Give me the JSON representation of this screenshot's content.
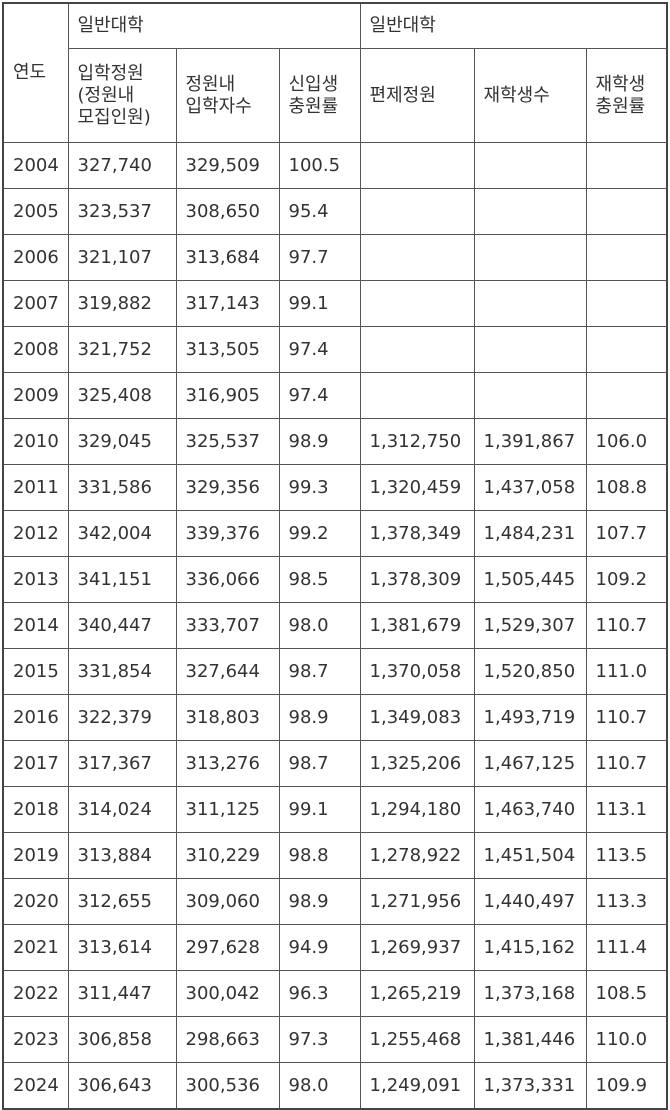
{
  "table": {
    "header": {
      "year": "연도",
      "group1": "일반대학",
      "group2": "일반대학",
      "columns": [
        "입학정원\n(정원내\n모집인원)",
        "정원내\n입학자수",
        "신입생\n충원률",
        "편제정원",
        "재학생수",
        "재학생\n충원률"
      ]
    },
    "rows": [
      [
        "2004",
        "327,740",
        "329,509",
        "100.5"
      ],
      [
        "2005",
        "323,537",
        "308,650",
        "95.4"
      ],
      [
        "2006",
        "321,107",
        "313,684",
        "97.7"
      ],
      [
        "2007",
        "319,882",
        "317,143",
        "99.1"
      ],
      [
        "2008",
        "321,752",
        "313,505",
        "97.4"
      ],
      [
        "2009",
        "325,408",
        "316,905",
        "97.4"
      ],
      [
        "2010",
        "329,045",
        "325,537",
        "98.9",
        "1,312,750",
        "1,391,867",
        "106.0"
      ],
      [
        "2011",
        "331,586",
        "329,356",
        "99.3",
        "1,320,459",
        "1,437,058",
        "108.8"
      ],
      [
        "2012",
        "342,004",
        "339,376",
        "99.2",
        "1,378,349",
        "1,484,231",
        "107.7"
      ],
      [
        "2013",
        "341,151",
        "336,066",
        "98.5",
        "1,378,309",
        "1,505,445",
        "109.2"
      ],
      [
        "2014",
        "340,447",
        "333,707",
        "98.0",
        "1,381,679",
        "1,529,307",
        "110.7"
      ],
      [
        "2015",
        "331,854",
        "327,644",
        "98.7",
        "1,370,058",
        "1,520,850",
        "111.0"
      ],
      [
        "2016",
        "322,379",
        "318,803",
        "98.9",
        "1,349,083",
        "1,493,719",
        "110.7"
      ],
      [
        "2017",
        "317,367",
        "313,276",
        "98.7",
        "1,325,206",
        "1,467,125",
        "110.7"
      ],
      [
        "2018",
        "314,024",
        "311,125",
        "99.1",
        "1,294,180",
        "1,463,740",
        "113.1"
      ],
      [
        "2019",
        "313,884",
        "310,229",
        "98.8",
        "1,278,922",
        "1,451,504",
        "113.5"
      ],
      [
        "2020",
        "312,655",
        "309,060",
        "98.9",
        "1,271,956",
        "1,440,497",
        "113.3"
      ],
      [
        "2021",
        "313,614",
        "297,628",
        "94.9",
        "1,269,937",
        "1,415,162",
        "111.4"
      ],
      [
        "2022",
        "311,447",
        "300,042",
        "96.3",
        "1,265,219",
        "1,373,168",
        "108.5"
      ],
      [
        "2023",
        "306,858",
        "298,663",
        "97.3",
        "1,255,468",
        "1,381,446",
        "110.0"
      ],
      [
        "2024",
        "306,643",
        "300,536",
        "98.0",
        "1,249,091",
        "1,373,331",
        "109.9"
      ]
    ]
  }
}
